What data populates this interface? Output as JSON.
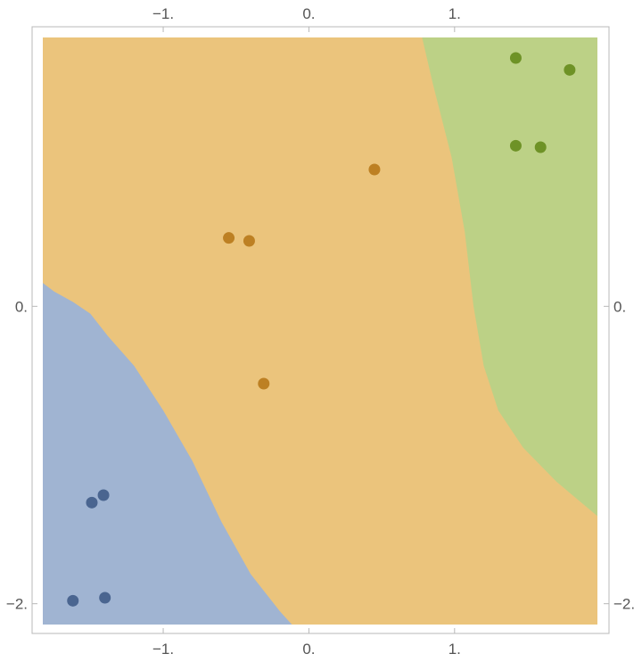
{
  "chart_data": {
    "type": "scatter",
    "title": "",
    "xlabel": "",
    "ylabel": "",
    "xlim": [
      -1.9,
      2.06
    ],
    "ylim": [
      -2.2,
      1.88
    ],
    "grid": false,
    "legend": "none",
    "x_ticks": [
      {
        "value": -1,
        "label": "-1."
      },
      {
        "value": 0,
        "label": "0."
      },
      {
        "value": 1,
        "label": "1."
      }
    ],
    "y_ticks": [
      {
        "value": 0,
        "label": "0."
      },
      {
        "value": -2,
        "label": "-2."
      }
    ],
    "regions": [
      {
        "name": "class-1-region",
        "color": "#a0b4d2",
        "boundary": [
          [
            -1.83,
            0.16
          ],
          [
            -1.75,
            0.1
          ],
          [
            -1.62,
            0.03
          ],
          [
            -1.5,
            -0.05
          ],
          [
            -1.38,
            -0.2
          ],
          [
            -1.2,
            -0.4
          ],
          [
            -1.0,
            -0.7
          ],
          [
            -0.8,
            -1.04
          ],
          [
            -0.6,
            -1.45
          ],
          [
            -0.4,
            -1.8
          ],
          [
            -0.2,
            -2.05
          ],
          [
            -0.08,
            -2.18
          ],
          [
            -1.83,
            -2.18
          ]
        ]
      },
      {
        "name": "class-2-region",
        "color": "#ebc47c",
        "boundary": []
      },
      {
        "name": "class-3-region",
        "color": "#bcd186",
        "boundary": [
          [
            0.76,
            1.88
          ],
          [
            0.85,
            1.5
          ],
          [
            0.98,
            1.0
          ],
          [
            1.07,
            0.5
          ],
          [
            1.13,
            0.0
          ],
          [
            1.2,
            -0.4
          ],
          [
            1.3,
            -0.7
          ],
          [
            1.47,
            -0.95
          ],
          [
            1.7,
            -1.18
          ],
          [
            1.98,
            -1.41
          ],
          [
            1.98,
            1.88
          ]
        ]
      }
    ],
    "series": [
      {
        "color": "#4a6590",
        "points": [
          [
            -1.41,
            -1.27
          ],
          [
            -1.49,
            -1.32
          ],
          [
            -1.62,
            -1.98
          ],
          [
            -1.4,
            -1.96
          ]
        ]
      },
      {
        "color": "#bd8023",
        "points": [
          [
            -0.55,
            0.46
          ],
          [
            -0.41,
            0.44
          ],
          [
            0.45,
            0.92
          ],
          [
            -0.31,
            -0.52
          ]
        ]
      },
      {
        "color": "#6e9226",
        "points": [
          [
            1.42,
            1.67
          ],
          [
            1.79,
            1.59
          ],
          [
            1.42,
            1.08
          ],
          [
            1.59,
            1.07
          ]
        ]
      }
    ]
  }
}
